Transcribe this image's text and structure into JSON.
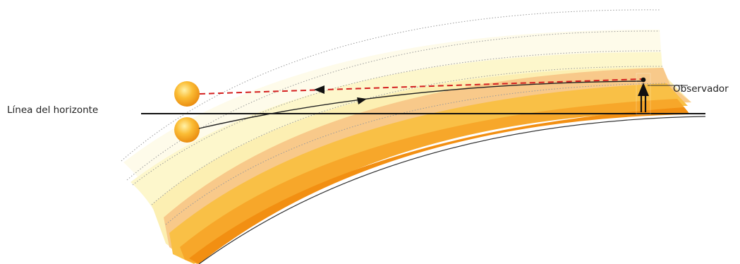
{
  "labels": {
    "horizon": "Línea del horizonte",
    "observer": "Observador"
  },
  "colors": {
    "layer_outer_faint": "#fefbea",
    "layer_pale": "#fdf7cc",
    "layer_pale_2": "#fcefb2",
    "layer_light_orange": "#f8c98a",
    "layer_yellow_orange": "#f9c046",
    "layer_orange": "#f7a72a",
    "layer_dark_orange": "#f28f12",
    "apparent_ray": "#d42020",
    "true_ray": "#1a1a1a",
    "sun_fill": "#f7a820",
    "dotted_boundary": "#999999"
  },
  "icons": {
    "sun_apparent": "sun-icon",
    "sun_real": "sun-icon",
    "observer": "person-icon"
  }
}
